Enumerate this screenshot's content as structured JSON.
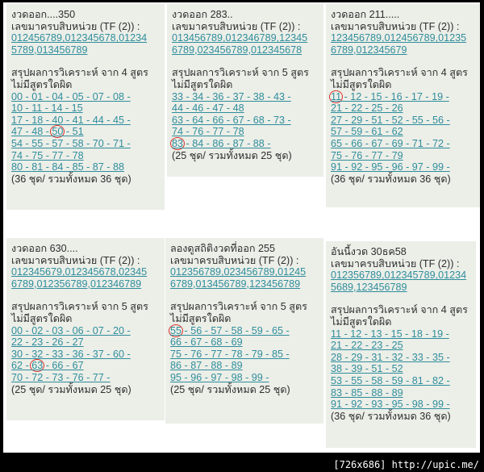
{
  "panels": [
    {
      "title": "งวดออก....350",
      "header": "เลขมาครบสิบหน่วย (TF (2)) :",
      "tf": [
        "012456789,012345678,01234",
        "5789,013456789"
      ],
      "summary": "สรุปผลการวิเคราะห์ จาก 4 สูตร",
      "subtitle": "ไม่มีสูตรใดผิด",
      "rows": [
        "00 - 01 - 04 - 05 - 07 - 08 -",
        "10 - 11 - 14 - 15",
        "17 - 18 - 40 - 41 - 44 - 45 -",
        "47 - 48 - 50 - 51",
        "54 - 55 - 57 - 58 - 70 - 71 -",
        "74 - 75 - 77 - 78",
        "80 - 81 - 84 - 85 - 87 - 88"
      ],
      "total": "(36 ชุด/ รวมทั้งหมด 36 ชุด)",
      "circled": "50"
    },
    {
      "title": "งวดออก 283..",
      "header": "เลขมาครบสิบหน่วย (TF (2)) :",
      "tf": [
        "013456789,012346789,12345",
        "6789,023456789,012345678"
      ],
      "summary": "สรุปผลการวิเคราะห์ จาก 5 สูตร",
      "subtitle": "ไม่มีสูตรใดผิด",
      "rows": [
        "33 - 34 - 36 - 37 - 38 - 43 -",
        "44 - 46 - 47 - 48",
        "63 - 64 - 66 - 67 - 68 - 73 -",
        "74 - 76 - 77 - 78",
        "83 - 84 - 86 - 87 - 88 -"
      ],
      "total": "(25 ชุด/ รวมทั้งหมด 25 ชุด)",
      "circled": "83"
    },
    {
      "title": "งวดออก 211.....",
      "header": "เลขมาครบสิบหน่วย (TF (2)) :",
      "tf": [
        "123456789,012456789,01235",
        "6789,012345679"
      ],
      "summary": "สรุปผลการวิเคราะห์ จาก 4 สูตร",
      "subtitle": "ไม่มีสูตรใดผิด",
      "rows": [
        "11 - 12 - 15 - 16 - 17 - 19 -",
        "21 - 22 - 25 - 26",
        "27 - 29 - 51 - 52 - 55 - 56 -",
        "57 - 59 - 61 - 62",
        "65 - 66 - 67 - 69 - 71 - 72 -",
        "75 - 76 - 77 - 79",
        "91 - 92 - 95 - 96 - 97 - 99 -"
      ],
      "total": "(36 ชุด/ รวมทั้งหมด 36 ชุด)",
      "circled": "11"
    },
    {
      "title": "งวดออก 630....",
      "header": "เลขมาครบสิบหน่วย (TF (2)) :",
      "tf": [
        "012345679,012345678,02345",
        "6789,012356789,012346789"
      ],
      "summary": "สรุปผลการวิเคราะห์ จาก 5 สูตร",
      "subtitle": "ไม่มีสูตรใดผิด",
      "rows": [
        "00 - 02 - 03 - 06 - 07 - 20 -",
        "22 - 23 - 26 - 27",
        "30 - 32 - 33 - 36 - 37 - 60 -",
        "62 - 63 - 66 - 67",
        "70 - 72 - 73 - 76 - 77 -"
      ],
      "total": "(25 ชุด/ รวมทั้งหมด 25 ชุด)",
      "circled": "63"
    },
    {
      "title": "ลองดูสถิติงวดที่ออก 255",
      "header": "เลขมาครบสิบหน่วย (TF (2)) :",
      "tf": [
        "012356789,023456789,01245",
        "6789,013456789,123456789"
      ],
      "summary": "สรุปผลการวิเคราะห์ จาก 5 สูตร",
      "subtitle": "ไม่มีสูตรใดผิด",
      "rows": [
        "55 - 56 - 57 - 58 - 59 - 65 -",
        "66 - 67 - 68 - 69",
        "75 - 76 - 77 - 78 - 79 - 85 -",
        "86 - 87 - 88 - 89",
        "95 - 96 - 97 - 98 - 99 -"
      ],
      "total": "(25 ชุด/ รวมทั้งหมด 25 ชุด)",
      "circled": "55"
    },
    {
      "title": "อันนี้งวด 30ธค58",
      "header": "เลขมาครบสิบหน่วย (TF (2)) :",
      "tf": [
        "012356789,012345789,01234",
        "5689,123456789"
      ],
      "summary": "สรุปผลการวิเคราะห์ จาก 4 สูตร",
      "subtitle": "ไม่มีสูตรใดผิด",
      "rows": [
        "11 - 12 - 13 - 15 - 18 - 19 -",
        "21 - 22 - 23 - 25",
        "28 - 29 - 31 - 32 - 33 - 35 -",
        "38 - 39 - 51 - 52",
        "53 - 55 - 58 - 59 - 81 - 82 -",
        "83 - 85 - 88 - 89",
        "91 - 92 - 93 - 95 - 98 - 99 -"
      ],
      "total": "(36 ชุด/ รวมทั้งหมด 36 ชุด)",
      "circled": null
    }
  ],
  "watermark": "[726x686] http://upic.me/",
  "colors": {
    "number_text": "#2f8e9c",
    "circle": "#d8322a",
    "panel_bg": "#eceee8"
  }
}
